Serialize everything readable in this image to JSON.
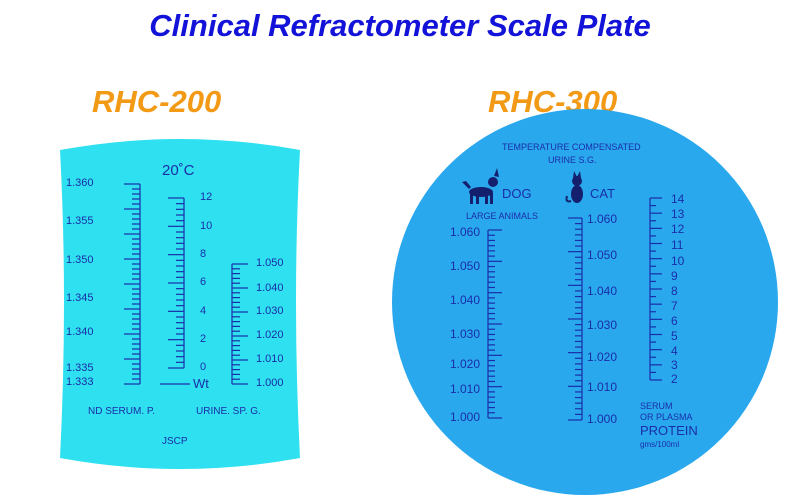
{
  "title": "Clinical Refractometer Scale Plate",
  "colors": {
    "title": "#1212d8",
    "model": "#f29a16",
    "plate_left": "#2fe0f0",
    "plate_right": "#2aa8ee",
    "ink": "#1a2ea8"
  },
  "left_plate": {
    "model": "RHC-200",
    "temperature": "20˚C",
    "serum_scale": [
      "1.360",
      "1.355",
      "1.350",
      "1.345",
      "1.340",
      "1.335",
      "1.333"
    ],
    "wt_scale": [
      "12",
      "10",
      "8",
      "6",
      "4",
      "2",
      "0"
    ],
    "wt_label": "Wt",
    "urine_scale": [
      "1.050",
      "1.040",
      "1.030",
      "1.020",
      "1.010",
      "1.000"
    ],
    "serum_label": "ND SERUM. P.",
    "urine_label": "URINE. SP. G.",
    "brand": "JSCP"
  },
  "right_plate": {
    "model": "RHC-300",
    "header_line1": "TEMPERATURE COMPENSATED",
    "header_line2": "URINE  S.G.",
    "dog_label": "DOG",
    "cat_label": "CAT",
    "large_animals": "LARGE ANIMALS",
    "dog_scale": [
      "1.060",
      "1.050",
      "1.040",
      "1.030",
      "1.020",
      "1.010",
      "1.000"
    ],
    "cat_scale": [
      "1.060",
      "1.050",
      "1.040",
      "1.030",
      "1.020",
      "1.010",
      "1.000"
    ],
    "protein_scale": [
      "14",
      "13",
      "12",
      "11",
      "10",
      "9",
      "8",
      "7",
      "6",
      "5",
      "4",
      "3",
      "2"
    ],
    "protein_line1": "SERUM",
    "protein_line2": "OR PLASMA",
    "protein_label": "PROTEIN",
    "protein_unit": "gms/100ml"
  }
}
